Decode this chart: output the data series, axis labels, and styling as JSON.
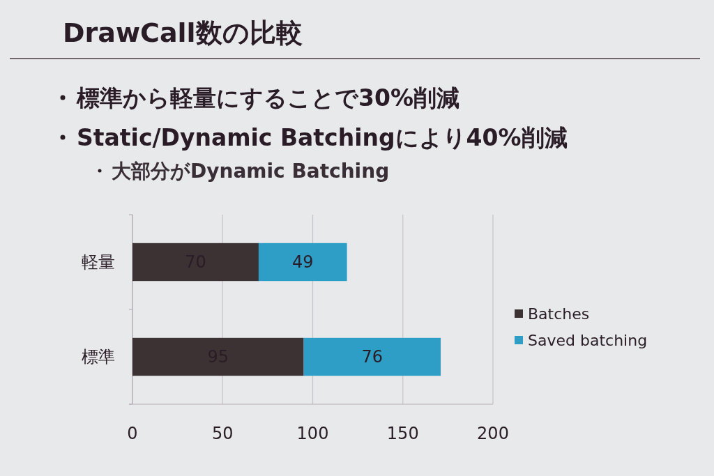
{
  "chart_data": {
    "type": "bar",
    "title": "DrawCall数の比較",
    "annotations": [
      "標準から軽量にすることで30%削減",
      "Static/Dynamic Batchingにより40%削減",
      "大部分がDynamic Batching"
    ],
    "categories": [
      "軽量",
      "標準"
    ],
    "series": [
      {
        "name": "Batches",
        "color": "#3d3233",
        "values": [
          70,
          95
        ]
      },
      {
        "name": "Saved batching",
        "color": "#2e9ec6",
        "values": [
          49,
          76
        ]
      }
    ],
    "stacked": true,
    "orientation": "horizontal",
    "xlim": [
      0,
      200
    ],
    "xticks": [
      0,
      50,
      100,
      150,
      200
    ],
    "grid": "x",
    "legend": "right",
    "data_labels": true
  }
}
